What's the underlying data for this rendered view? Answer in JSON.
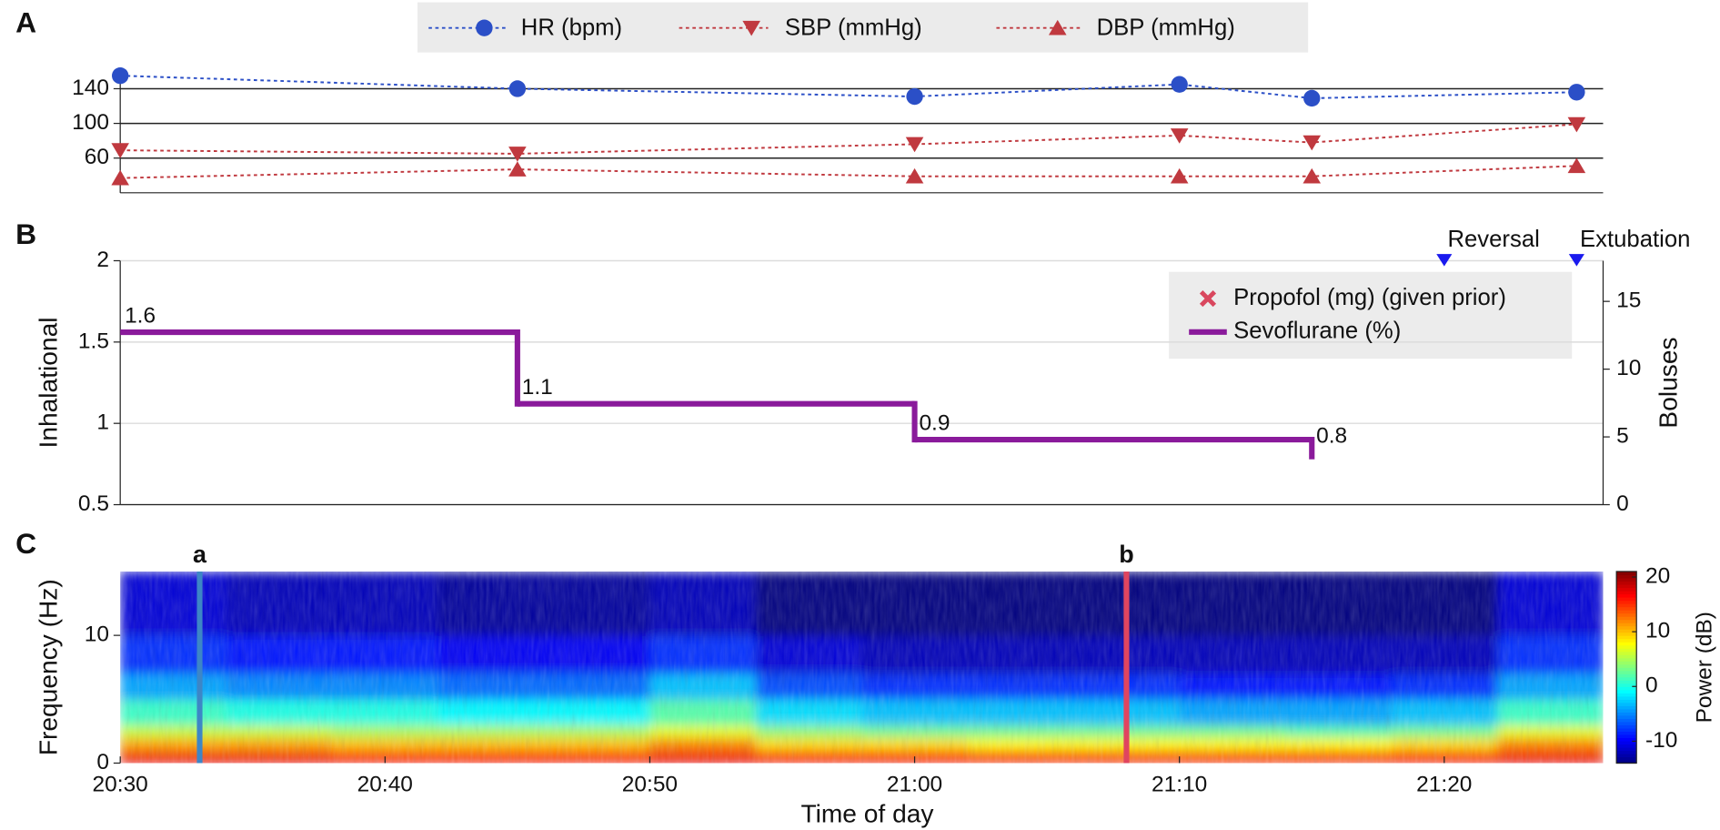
{
  "chart_data": [
    {
      "type": "line",
      "panel": "A",
      "x": [
        "20:30",
        "20:45",
        "21:00",
        "21:10",
        "21:15",
        "21:25"
      ],
      "xlim": [
        "20:30",
        "21:26"
      ],
      "ylim": [
        20,
        160
      ],
      "yticks": [
        60,
        100,
        140
      ],
      "grid": true,
      "grid_color": "#222222",
      "series": [
        {
          "name": "HR (bpm)",
          "color": "#2b4fc7",
          "marker": "circle",
          "linestyle": "dotted",
          "values": [
            155,
            140,
            131,
            145,
            129,
            136
          ]
        },
        {
          "name": "SBP (mmHg)",
          "color": "#c0393f",
          "marker": "triangle-down",
          "linestyle": "dotted",
          "values": [
            69,
            65,
            76,
            86,
            78,
            99
          ]
        },
        {
          "name": "DBP (mmHg)",
          "color": "#c0393f",
          "marker": "triangle-up",
          "linestyle": "dotted",
          "values": [
            37,
            47,
            39,
            39,
            39,
            51
          ]
        }
      ]
    },
    {
      "type": "step",
      "panel": "B",
      "x": [
        "20:30",
        "20:45",
        "21:00",
        "21:15"
      ],
      "xlim": [
        "20:30",
        "21:26"
      ],
      "ylabel": "Inhalational",
      "y2label": "Boluses",
      "ylim": [
        0.5,
        2
      ],
      "yticks": [
        0.5,
        1,
        1.5,
        2
      ],
      "y2lim": [
        0,
        18
      ],
      "y2ticks": [
        0,
        5,
        10,
        15
      ],
      "grid": true,
      "grid_color": "#dcdcdc",
      "legend": "upper right",
      "series": [
        {
          "name": "Propofol (mg) (given prior)",
          "color": "#d9475e",
          "marker": "x",
          "axis": "y2",
          "values": [
            null,
            null,
            null,
            null
          ]
        },
        {
          "name": "Sevoflurane (%)",
          "color": "#8a1a9b",
          "values": [
            1.56,
            1.12,
            0.9,
            0.82
          ],
          "value_labels": [
            "1.6",
            "1.1",
            "0.9",
            "0.8"
          ]
        }
      ],
      "annotations": [
        {
          "text": "Reversal",
          "x": "21:20"
        },
        {
          "text": "Extubation",
          "x": "21:25"
        }
      ],
      "annotation_color": "#1a1aee"
    },
    {
      "type": "heatmap",
      "panel": "C",
      "ylabel": "Frequency (Hz)",
      "xlabel": "Time of day",
      "xlim": [
        "20:30",
        "21:26"
      ],
      "xticks": [
        "20:30",
        "20:40",
        "20:50",
        "21:00",
        "21:10",
        "21:20"
      ],
      "ylim": [
        0,
        15
      ],
      "yticks": [
        0,
        10
      ],
      "x_edges": [
        "20:30",
        "20:34",
        "20:38",
        "20:42",
        "20:46",
        "20:50",
        "20:54",
        "20:58",
        "21:02",
        "21:06",
        "21:10",
        "21:14",
        "21:18",
        "21:22",
        "21:26"
      ],
      "y_edges": [
        0,
        1,
        2,
        3,
        5,
        7,
        10,
        15
      ],
      "z": [
        [
          17,
          17,
          16,
          16,
          16,
          17,
          16,
          16,
          15,
          15,
          15,
          15,
          16,
          17
        ],
        [
          11,
          11,
          10,
          10,
          10,
          12,
          9,
          9,
          8,
          8,
          8,
          8,
          9,
          12
        ],
        [
          6,
          6,
          5,
          5,
          5,
          7,
          4,
          3,
          3,
          3,
          3,
          2,
          3,
          7
        ],
        [
          1,
          0,
          0,
          -1,
          -1,
          2,
          -2,
          -3,
          -3,
          -3,
          -4,
          -4,
          -3,
          1
        ],
        [
          -4,
          -5,
          -5,
          -6,
          -6,
          -3,
          -7,
          -8,
          -8,
          -8,
          -9,
          -9,
          -8,
          -4
        ],
        [
          -8,
          -9,
          -9,
          -10,
          -10,
          -8,
          -11,
          -12,
          -12,
          -12,
          -12,
          -12,
          -12,
          -8
        ],
        [
          -11,
          -12,
          -12,
          -13,
          -13,
          -12,
          -14,
          -14,
          -14,
          -14,
          -14,
          -14,
          -14,
          -11
        ]
      ],
      "colormap": "jet",
      "clim": [
        -14,
        21
      ],
      "colorbar_label": "Power (dB)",
      "colorbar_ticks": [
        -10,
        0,
        10,
        20
      ],
      "markers": [
        {
          "text": "a",
          "x": "20:33",
          "color": "#3d86c6"
        },
        {
          "text": "b",
          "x": "21:08",
          "color": "#e0455f"
        }
      ]
    }
  ]
}
